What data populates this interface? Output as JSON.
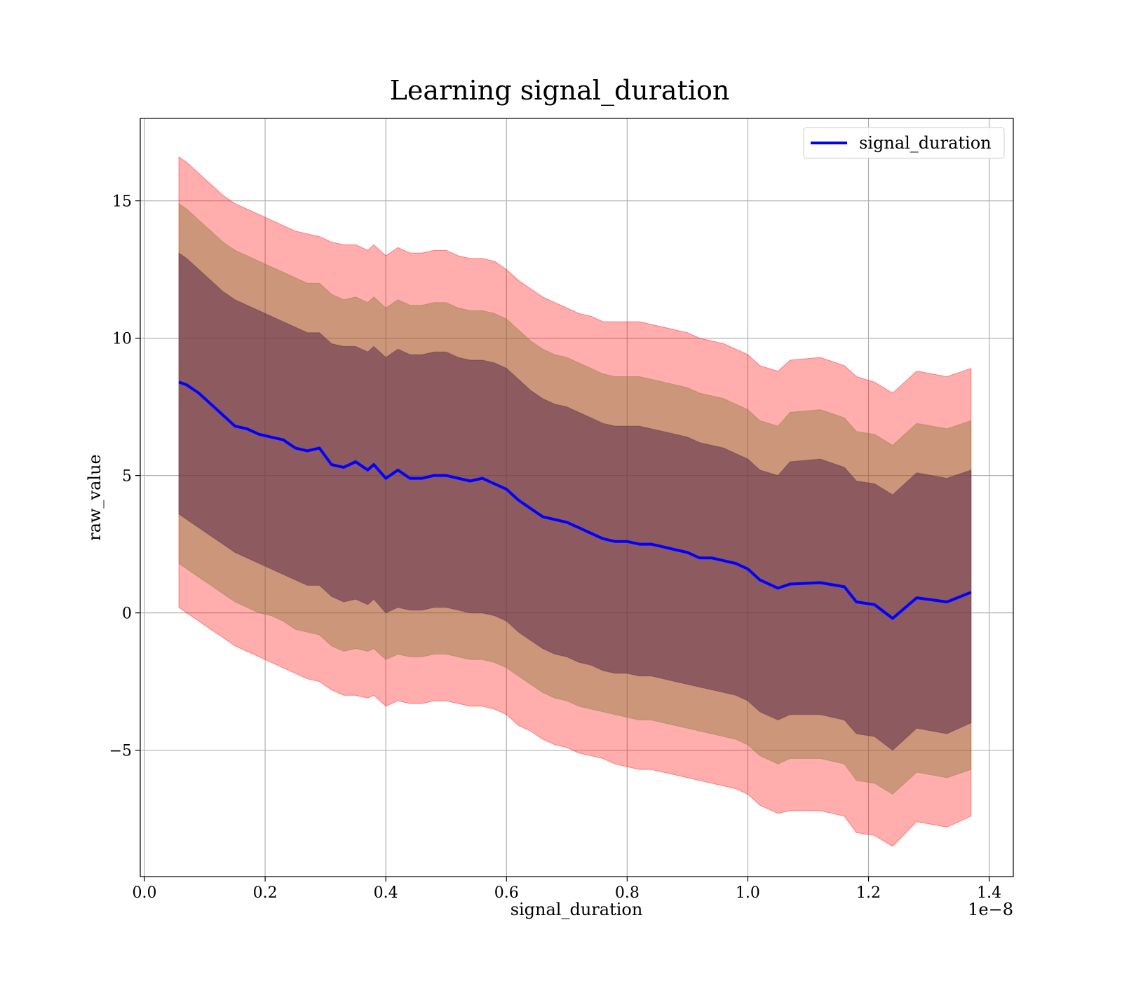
{
  "chart_data": {
    "type": "line",
    "title": "Learning signal_duration",
    "xlabel": "signal_duration",
    "ylabel": "raw_value",
    "x_offset_label": "1e−8",
    "xlim": [
      -0.007,
      1.44
    ],
    "ylim": [
      -9.6,
      18.0
    ],
    "x_ticks": [
      0.0,
      0.2,
      0.4,
      0.6,
      0.8,
      1.0,
      1.2,
      1.4
    ],
    "x_tick_labels": [
      "0.0",
      "0.2",
      "0.4",
      "0.6",
      "0.8",
      "1.0",
      "1.2",
      "1.4"
    ],
    "y_ticks": [
      -5,
      0,
      5,
      10,
      15
    ],
    "y_tick_labels": [
      "−5",
      "0",
      "5",
      "10",
      "15"
    ],
    "grid": true,
    "legend_position": "top-right",
    "colors": {
      "line": "#0000ff",
      "band": "#ff0000",
      "grid": "#b0b0b0"
    },
    "x": [
      0.057,
      0.07,
      0.09,
      0.11,
      0.13,
      0.15,
      0.17,
      0.19,
      0.21,
      0.23,
      0.25,
      0.27,
      0.29,
      0.31,
      0.33,
      0.35,
      0.37,
      0.38,
      0.4,
      0.42,
      0.44,
      0.46,
      0.48,
      0.5,
      0.52,
      0.54,
      0.56,
      0.58,
      0.6,
      0.62,
      0.64,
      0.66,
      0.68,
      0.7,
      0.72,
      0.74,
      0.76,
      0.78,
      0.8,
      0.82,
      0.84,
      0.86,
      0.88,
      0.9,
      0.92,
      0.94,
      0.96,
      0.98,
      1.0,
      1.02,
      1.05,
      1.07,
      1.12,
      1.16,
      1.18,
      1.21,
      1.24,
      1.28,
      1.33,
      1.37
    ],
    "series": [
      {
        "name": "signal_duration",
        "values": [
          8.4,
          8.3,
          8.0,
          7.6,
          7.2,
          6.8,
          6.7,
          6.5,
          6.4,
          6.3,
          6.0,
          5.9,
          6.0,
          5.4,
          5.3,
          5.5,
          5.2,
          5.4,
          4.9,
          5.2,
          4.9,
          4.9,
          5.0,
          5.0,
          4.9,
          4.8,
          4.9,
          4.7,
          4.5,
          4.1,
          3.8,
          3.5,
          3.4,
          3.3,
          3.1,
          2.9,
          2.7,
          2.6,
          2.6,
          2.5,
          2.5,
          2.4,
          2.3,
          2.2,
          2.0,
          2.0,
          1.9,
          1.8,
          1.6,
          1.2,
          0.9,
          1.05,
          1.1,
          0.95,
          0.4,
          0.3,
          -0.2,
          0.55,
          0.4,
          0.75
        ]
      }
    ],
    "bands": [
      {
        "sigma": 3,
        "upper": [
          16.6,
          16.4,
          16.0,
          15.6,
          15.2,
          14.9,
          14.7,
          14.5,
          14.3,
          14.1,
          13.9,
          13.8,
          13.7,
          13.5,
          13.4,
          13.4,
          13.2,
          13.4,
          13.0,
          13.3,
          13.1,
          13.1,
          13.2,
          13.2,
          13.0,
          12.9,
          12.9,
          12.8,
          12.5,
          12.1,
          11.8,
          11.5,
          11.3,
          11.1,
          10.9,
          10.8,
          10.6,
          10.6,
          10.6,
          10.6,
          10.5,
          10.4,
          10.3,
          10.2,
          10.0,
          9.9,
          9.8,
          9.6,
          9.4,
          9.0,
          8.8,
          9.2,
          9.3,
          9.0,
          8.6,
          8.4,
          8.0,
          8.8,
          8.6,
          8.9
        ],
        "lower": [
          0.2,
          0.0,
          -0.3,
          -0.6,
          -0.9,
          -1.2,
          -1.4,
          -1.6,
          -1.8,
          -2.0,
          -2.2,
          -2.4,
          -2.5,
          -2.8,
          -3.0,
          -3.0,
          -3.1,
          -3.0,
          -3.4,
          -3.2,
          -3.3,
          -3.3,
          -3.2,
          -3.2,
          -3.3,
          -3.4,
          -3.4,
          -3.5,
          -3.7,
          -4.1,
          -4.3,
          -4.6,
          -4.8,
          -4.9,
          -5.1,
          -5.2,
          -5.3,
          -5.5,
          -5.6,
          -5.7,
          -5.7,
          -5.8,
          -5.9,
          -6.0,
          -6.1,
          -6.2,
          -6.3,
          -6.4,
          -6.6,
          -7.0,
          -7.3,
          -7.2,
          -7.2,
          -7.4,
          -8.0,
          -8.1,
          -8.5,
          -7.6,
          -7.8,
          -7.4
        ]
      },
      {
        "sigma": 2,
        "upper": [
          14.9,
          14.7,
          14.3,
          13.9,
          13.5,
          13.2,
          13.0,
          12.8,
          12.6,
          12.4,
          12.2,
          12.0,
          12.0,
          11.6,
          11.4,
          11.5,
          11.3,
          11.5,
          11.1,
          11.4,
          11.2,
          11.2,
          11.3,
          11.3,
          11.1,
          11.0,
          11.0,
          10.9,
          10.7,
          10.3,
          9.9,
          9.6,
          9.4,
          9.3,
          9.1,
          8.9,
          8.7,
          8.6,
          8.6,
          8.6,
          8.5,
          8.4,
          8.3,
          8.2,
          8.0,
          7.9,
          7.8,
          7.6,
          7.4,
          7.0,
          6.8,
          7.3,
          7.4,
          7.1,
          6.6,
          6.5,
          6.1,
          6.9,
          6.7,
          7.0
        ],
        "lower": [
          1.8,
          1.6,
          1.3,
          1.0,
          0.7,
          0.4,
          0.2,
          0.0,
          -0.1,
          -0.3,
          -0.6,
          -0.7,
          -0.8,
          -1.2,
          -1.4,
          -1.3,
          -1.4,
          -1.3,
          -1.7,
          -1.5,
          -1.6,
          -1.6,
          -1.5,
          -1.5,
          -1.6,
          -1.7,
          -1.7,
          -1.8,
          -2.0,
          -2.3,
          -2.6,
          -2.9,
          -3.1,
          -3.2,
          -3.4,
          -3.5,
          -3.6,
          -3.7,
          -3.8,
          -3.9,
          -3.9,
          -4.0,
          -4.1,
          -4.2,
          -4.3,
          -4.4,
          -4.5,
          -4.6,
          -4.8,
          -5.2,
          -5.5,
          -5.3,
          -5.3,
          -5.5,
          -6.1,
          -6.2,
          -6.6,
          -5.8,
          -6.0,
          -5.7
        ]
      },
      {
        "sigma": 1,
        "upper": [
          13.1,
          12.9,
          12.5,
          12.1,
          11.7,
          11.4,
          11.2,
          11.0,
          10.8,
          10.6,
          10.4,
          10.2,
          10.2,
          9.8,
          9.7,
          9.7,
          9.5,
          9.7,
          9.3,
          9.6,
          9.4,
          9.4,
          9.5,
          9.5,
          9.3,
          9.2,
          9.2,
          9.1,
          8.9,
          8.5,
          8.1,
          7.8,
          7.6,
          7.5,
          7.3,
          7.1,
          6.9,
          6.8,
          6.8,
          6.8,
          6.7,
          6.6,
          6.5,
          6.4,
          6.2,
          6.1,
          6.0,
          5.8,
          5.6,
          5.2,
          5.0,
          5.5,
          5.6,
          5.3,
          4.8,
          4.7,
          4.3,
          5.1,
          4.9,
          5.2
        ],
        "lower": [
          3.6,
          3.4,
          3.1,
          2.8,
          2.5,
          2.2,
          2.0,
          1.8,
          1.6,
          1.4,
          1.2,
          1.0,
          1.0,
          0.6,
          0.4,
          0.5,
          0.3,
          0.5,
          0.0,
          0.2,
          0.1,
          0.1,
          0.2,
          0.2,
          0.1,
          0.0,
          0.0,
          -0.1,
          -0.3,
          -0.7,
          -1.0,
          -1.3,
          -1.5,
          -1.6,
          -1.8,
          -1.9,
          -2.1,
          -2.2,
          -2.2,
          -2.3,
          -2.3,
          -2.4,
          -2.5,
          -2.6,
          -2.7,
          -2.8,
          -2.9,
          -3.0,
          -3.2,
          -3.6,
          -3.9,
          -3.7,
          -3.7,
          -3.9,
          -4.4,
          -4.5,
          -5.0,
          -4.2,
          -4.4,
          -4.0
        ]
      }
    ]
  }
}
